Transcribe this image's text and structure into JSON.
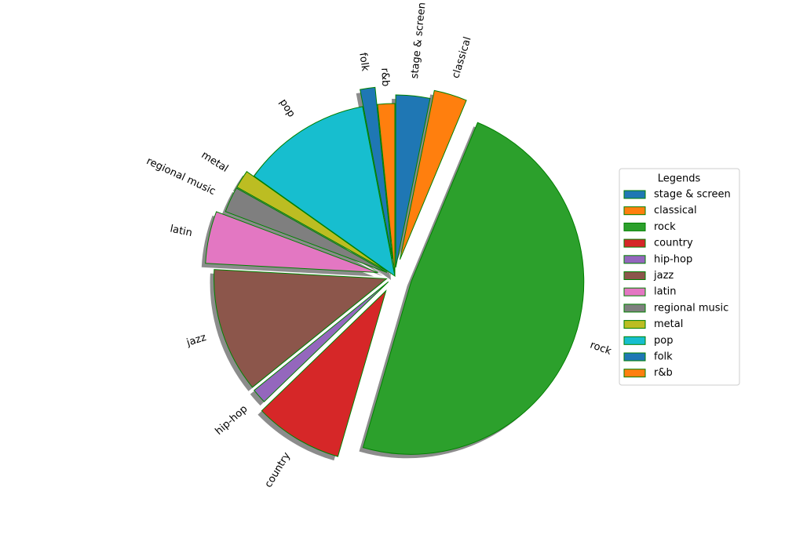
{
  "chart_data": {
    "type": "pie",
    "categories": [
      "stage & screen",
      "classical",
      "rock",
      "country",
      "hip-hop",
      "jazz",
      "latin",
      "regional music",
      "metal",
      "pop",
      "folk",
      "r&b"
    ],
    "values": [
      3.2,
      3.1,
      48.3,
      8.3,
      1.4,
      11.7,
      4.9,
      2.4,
      1.7,
      12.2,
      1.4,
      1.6
    ],
    "colors": [
      "#1f77b4",
      "#ff7f0e",
      "#2ca02c",
      "#d62728",
      "#9467bd",
      "#8c564b",
      "#e377c2",
      "#7f7f7f",
      "#bcbd22",
      "#17becf",
      "#1f77b4",
      "#ff7f0e"
    ],
    "edge_color": "#008000",
    "legend_title": "Legends",
    "legend_position": "right"
  }
}
